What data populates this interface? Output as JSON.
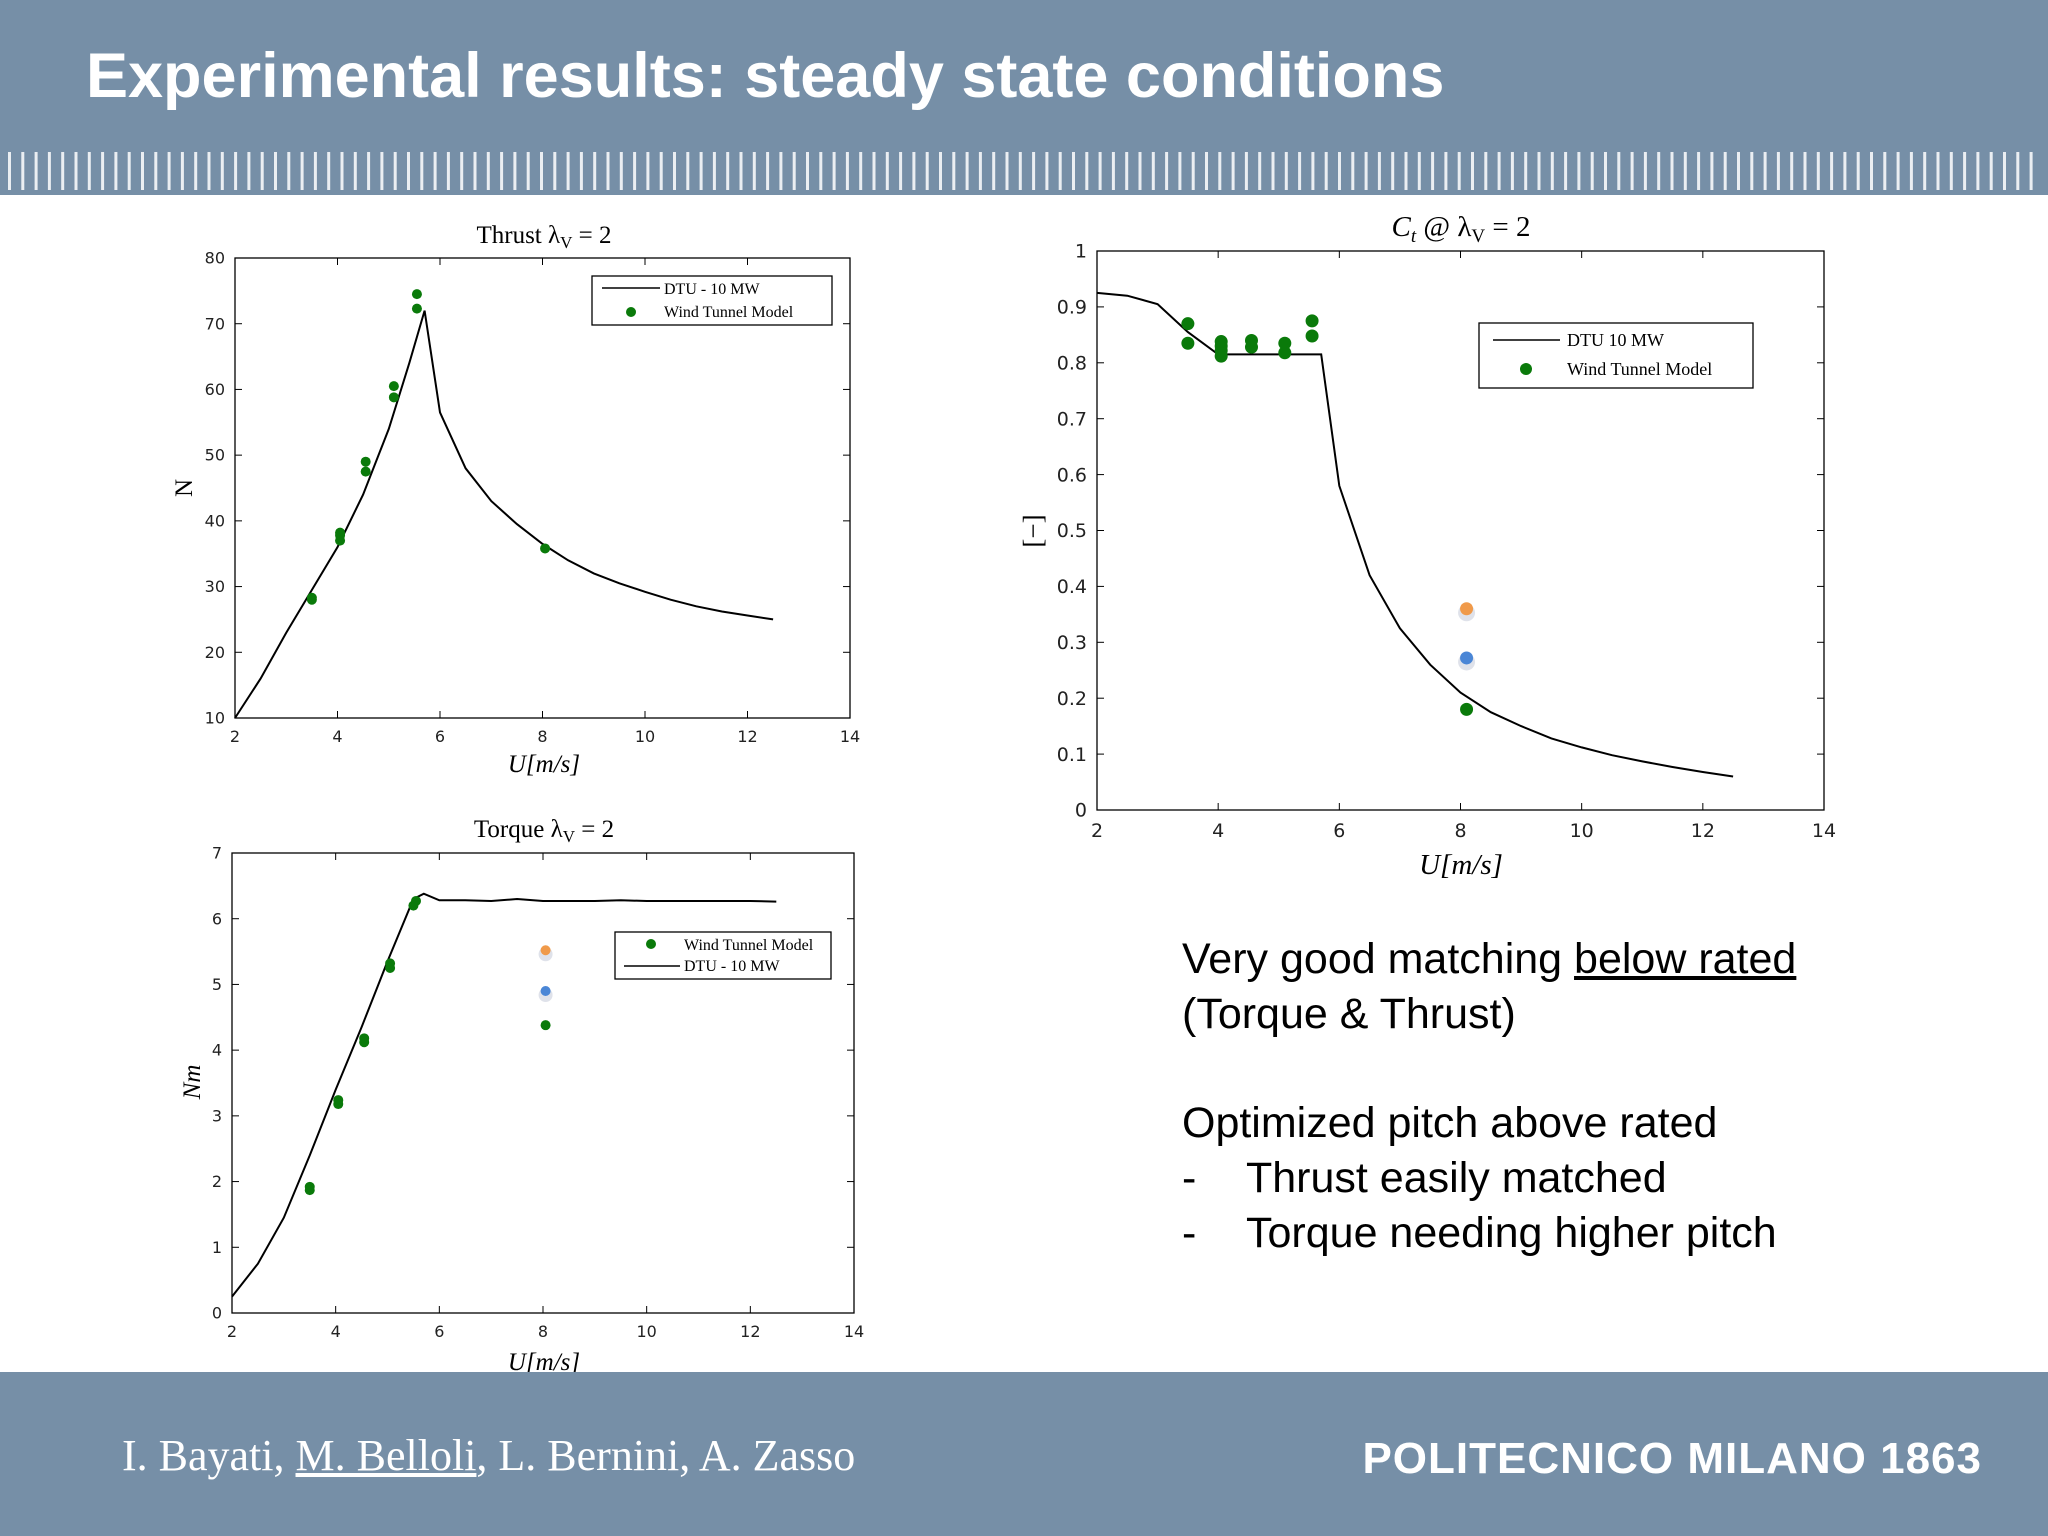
{
  "slide": {
    "title": "Experimental results: steady state conditions",
    "authors": {
      "a1": "I. Bayati,",
      "a2": "M. Belloli",
      "a3": ", L. Bernini, A. Zasso"
    },
    "logo": "POLITECNICO MILANO 1863",
    "notes": {
      "line1_a": "Very good matching ",
      "line1_b": "below rated",
      "line2": "(Torque & Thrust)",
      "line3": "Optimized pitch above rated",
      "bullet": "-",
      "bullet1": "Thrust easily matched",
      "bullet2": "Torque needing higher pitch"
    }
  },
  "colors": {
    "band": "#768fa7",
    "model_green": "#0a7a0a",
    "orange": "#f09a4a",
    "blue": "#4a86d6",
    "line": "#000000"
  },
  "charts": {
    "thrust": {
      "title_a": "Thrust λ",
      "title_sub": "V",
      "title_b": " = 2",
      "ylabel": "N",
      "xlabel": "U[m/s]",
      "legend_line": "DTU - 10 MW",
      "legend_dots": "Wind Tunnel Model",
      "xticks": [
        "2",
        "4",
        "6",
        "8",
        "10",
        "12",
        "14"
      ],
      "yticks": [
        "10",
        "20",
        "30",
        "40",
        "50",
        "60",
        "70",
        "80"
      ]
    },
    "torque": {
      "title_a": "Torque λ",
      "title_sub": "V",
      "title_b": " = 2",
      "ylabel": "Nm",
      "xlabel": "U[m/s]",
      "legend_dots": "Wind Tunnel Model",
      "legend_line": "DTU - 10 MW",
      "xticks": [
        "2",
        "4",
        "6",
        "8",
        "10",
        "12",
        "14"
      ],
      "yticks": [
        "0",
        "1",
        "2",
        "3",
        "4",
        "5",
        "6",
        "7"
      ]
    },
    "ct": {
      "title_a": "C",
      "title_sub1": "t",
      "title_mid": " @ λ",
      "title_sub2": "V",
      "title_b": " = 2",
      "ylabel": "[−]",
      "xlabel": "U[m/s]",
      "legend_line": "DTU 10 MW",
      "legend_dots": "Wind Tunnel Model",
      "xticks": [
        "2",
        "4",
        "6",
        "8",
        "10",
        "12",
        "14"
      ],
      "yticks": [
        "0",
        "0.1",
        "0.2",
        "0.3",
        "0.4",
        "0.5",
        "0.6",
        "0.7",
        "0.8",
        "0.9",
        "1"
      ]
    }
  },
  "chart_data": [
    {
      "type": "line",
      "title": "Thrust λV = 2",
      "xlabel": "U[m/s]",
      "ylabel": "N",
      "xlim": [
        2,
        14
      ],
      "ylim": [
        10,
        80
      ],
      "grid": false,
      "legend": "top-right",
      "series": [
        {
          "name": "DTU - 10 MW",
          "kind": "line",
          "x": [
            2,
            2.5,
            3,
            3.5,
            4,
            4.5,
            5,
            5.4,
            5.7,
            6,
            6.5,
            7,
            7.5,
            8,
            8.5,
            9,
            9.5,
            10,
            10.5,
            11,
            11.5,
            12,
            12.5
          ],
          "y": [
            10,
            16,
            23,
            29.5,
            36,
            44,
            54,
            64,
            72,
            56.5,
            48,
            43,
            39.5,
            36.5,
            34,
            32,
            30.5,
            29.2,
            28,
            27,
            26.2,
            25.6,
            25
          ]
        },
        {
          "name": "Wind Tunnel Model",
          "kind": "scatter",
          "x": [
            3.5,
            3.5,
            4.05,
            4.05,
            4.05,
            4.55,
            4.55,
            5.1,
            5.1,
            5.55,
            5.55,
            8.05
          ],
          "y": [
            28,
            28.3,
            37,
            37.8,
            38.2,
            47.5,
            49,
            58.8,
            60.5,
            72.3,
            74.5,
            35.8
          ]
        }
      ]
    },
    {
      "type": "line",
      "title": "Torque λV = 2",
      "xlabel": "U[m/s]",
      "ylabel": "Nm",
      "xlim": [
        2,
        14
      ],
      "ylim": [
        0,
        7
      ],
      "grid": false,
      "legend": "top-right",
      "series": [
        {
          "name": "DTU - 10 MW",
          "kind": "line",
          "x": [
            2,
            2.5,
            3,
            3.5,
            4,
            4.5,
            5,
            5.5,
            5.7,
            6,
            6.5,
            7,
            7.5,
            8,
            8.5,
            9,
            9.5,
            10,
            10.5,
            11,
            11.5,
            12,
            12.5
          ],
          "y": [
            0.25,
            0.75,
            1.45,
            2.4,
            3.4,
            4.35,
            5.35,
            6.3,
            6.38,
            6.28,
            6.28,
            6.27,
            6.3,
            6.27,
            6.27,
            6.27,
            6.28,
            6.27,
            6.27,
            6.27,
            6.27,
            6.27,
            6.26
          ]
        },
        {
          "name": "Wind Tunnel Model",
          "kind": "scatter",
          "x": [
            3.5,
            3.5,
            4.05,
            4.05,
            4.55,
            4.55,
            5.05,
            5.05,
            5.5,
            5.55,
            8.05
          ],
          "y": [
            1.87,
            1.92,
            3.18,
            3.24,
            4.12,
            4.18,
            5.25,
            5.32,
            6.2,
            6.27,
            4.38
          ]
        },
        {
          "name": "",
          "kind": "scatter",
          "color": "orange",
          "x": [
            8.05
          ],
          "y": [
            5.52
          ]
        },
        {
          "name": "",
          "kind": "scatter",
          "color": "blue",
          "x": [
            8.05
          ],
          "y": [
            4.9
          ]
        }
      ]
    },
    {
      "type": "line",
      "title": "Ct @ λV = 2",
      "xlabel": "U[m/s]",
      "ylabel": "[−]",
      "xlim": [
        2,
        14
      ],
      "ylim": [
        0,
        1
      ],
      "grid": false,
      "legend": "top-right",
      "series": [
        {
          "name": "DTU 10 MW",
          "kind": "line",
          "x": [
            2,
            2.5,
            3,
            3.5,
            4,
            4.5,
            5,
            5.5,
            5.7,
            6,
            6.5,
            7,
            7.5,
            8,
            8.5,
            9,
            9.5,
            10,
            10.5,
            11,
            11.5,
            12,
            12.5
          ],
          "y": [
            0.925,
            0.92,
            0.905,
            0.855,
            0.815,
            0.815,
            0.815,
            0.815,
            0.815,
            0.58,
            0.42,
            0.325,
            0.26,
            0.21,
            0.175,
            0.15,
            0.128,
            0.112,
            0.098,
            0.087,
            0.077,
            0.068,
            0.06
          ]
        },
        {
          "name": "Wind Tunnel Model",
          "kind": "scatter",
          "x": [
            3.5,
            3.5,
            4.05,
            4.05,
            4.05,
            4.05,
            4.55,
            4.55,
            5.1,
            5.1,
            5.55,
            5.55,
            8.1
          ],
          "y": [
            0.835,
            0.87,
            0.812,
            0.822,
            0.83,
            0.838,
            0.828,
            0.84,
            0.818,
            0.835,
            0.848,
            0.875,
            0.18
          ]
        },
        {
          "name": "",
          "kind": "scatter",
          "color": "orange",
          "x": [
            8.1
          ],
          "y": [
            0.36
          ]
        },
        {
          "name": "",
          "kind": "scatter",
          "color": "blue",
          "x": [
            8.1
          ],
          "y": [
            0.272
          ]
        }
      ]
    }
  ]
}
